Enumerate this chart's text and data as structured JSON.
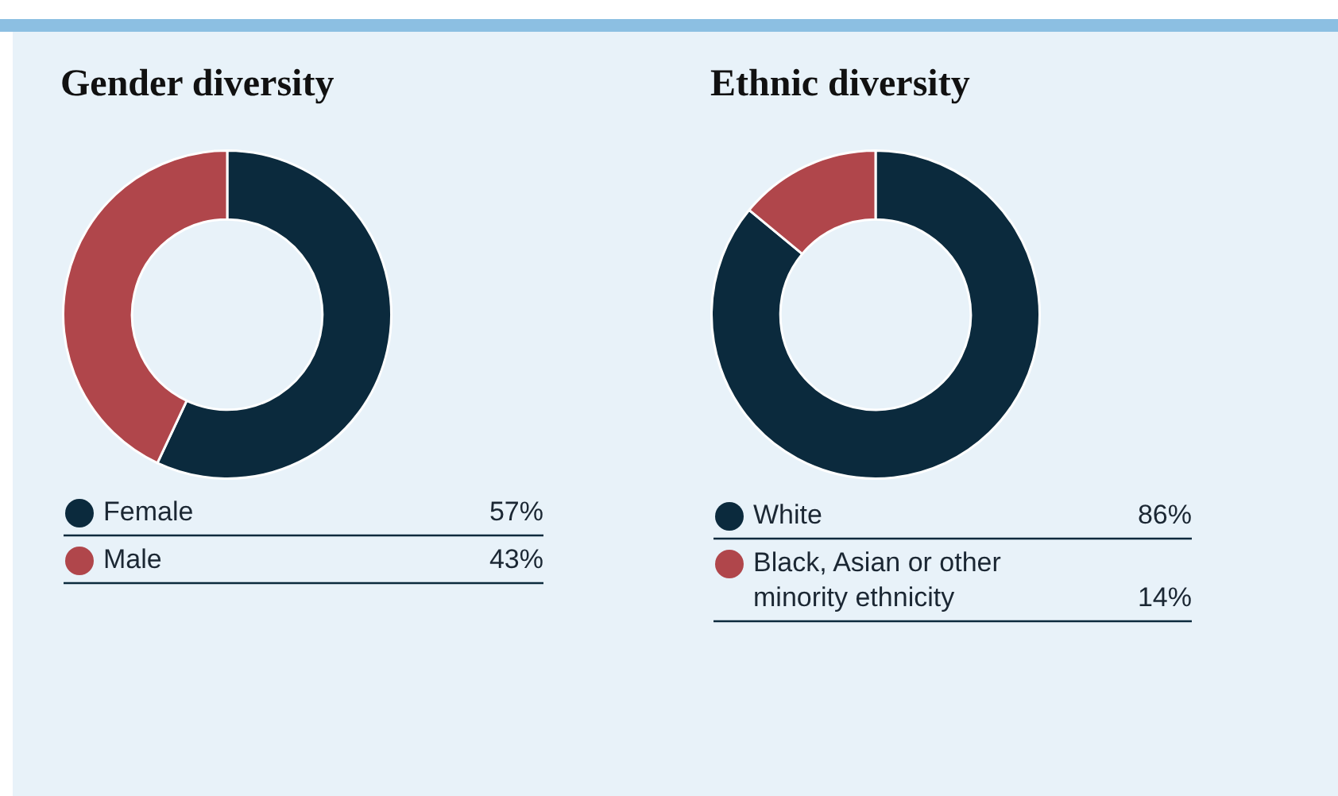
{
  "chart_data": [
    {
      "type": "donut",
      "title": "Gender diversity",
      "categories": [
        "Female",
        "Male"
      ],
      "values": [
        57,
        43
      ],
      "colors": [
        "#0b2a3d",
        "#b0464b"
      ],
      "value_labels": [
        "57%",
        "43%"
      ],
      "legend": "bottom"
    },
    {
      "type": "donut",
      "title": "Ethnic diversity",
      "categories": [
        "White",
        "Black, Asian or other minority ethnicity"
      ],
      "values": [
        86,
        14
      ],
      "colors": [
        "#0b2a3d",
        "#b0464b"
      ],
      "value_labels": [
        "86%",
        "14%"
      ],
      "legend": "bottom"
    }
  ]
}
